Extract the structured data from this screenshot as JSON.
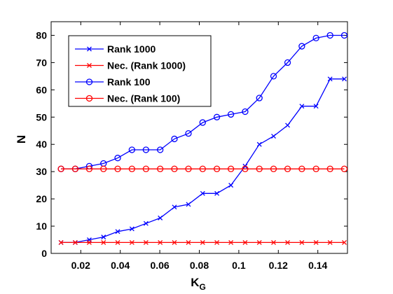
{
  "chart_data": {
    "type": "line",
    "xlabel": "K",
    "xlabel_sub": "G",
    "ylabel": "N",
    "xlim": [
      0.005,
      0.155
    ],
    "ylim": [
      0,
      85
    ],
    "xticks": [
      0.02,
      0.04,
      0.06,
      0.08,
      0.1,
      0.12,
      0.14
    ],
    "xtick_labels": [
      "0.02",
      "0.04",
      "0.06",
      "0.08",
      "0.1",
      "0.12",
      "0.14"
    ],
    "yticks": [
      0,
      10,
      20,
      30,
      40,
      50,
      60,
      70,
      80
    ],
    "ytick_labels": [
      "0",
      "10",
      "20",
      "30",
      "40",
      "50",
      "60",
      "70",
      "80"
    ],
    "grid": false,
    "legend_position": "top-left",
    "x": [
      0.01,
      0.0172,
      0.0243,
      0.0315,
      0.0387,
      0.0459,
      0.053,
      0.0602,
      0.0674,
      0.0745,
      0.0817,
      0.0889,
      0.096,
      0.1032,
      0.1104,
      0.1176,
      0.1247,
      0.1319,
      0.1391,
      0.1462,
      0.1534
    ],
    "series": [
      {
        "name": "Rank 1000",
        "color": "#0000ff",
        "marker": "x",
        "values": [
          4,
          4,
          5,
          6,
          8,
          9,
          11,
          13,
          17,
          18,
          22,
          22,
          25,
          32,
          40,
          43,
          47,
          54,
          54,
          64,
          64
        ]
      },
      {
        "name": "Nec. (Rank 1000)",
        "color": "#ff0000",
        "marker": "x",
        "values": [
          4,
          4,
          4,
          4,
          4,
          4,
          4,
          4,
          4,
          4,
          4,
          4,
          4,
          4,
          4,
          4,
          4,
          4,
          4,
          4,
          4
        ]
      },
      {
        "name": "Rank 100",
        "color": "#0000ff",
        "marker": "o",
        "values": [
          31,
          31,
          32,
          33,
          35,
          38,
          38,
          38,
          42,
          44,
          48,
          50,
          51,
          52,
          57,
          65,
          70,
          76,
          79,
          80,
          80
        ]
      },
      {
        "name": "Nec. (Rank 100)",
        "color": "#ff0000",
        "marker": "o",
        "values": [
          31,
          31,
          31,
          31,
          31,
          31,
          31,
          31,
          31,
          31,
          31,
          31,
          31,
          31,
          31,
          31,
          31,
          31,
          31,
          31,
          31
        ]
      }
    ]
  }
}
